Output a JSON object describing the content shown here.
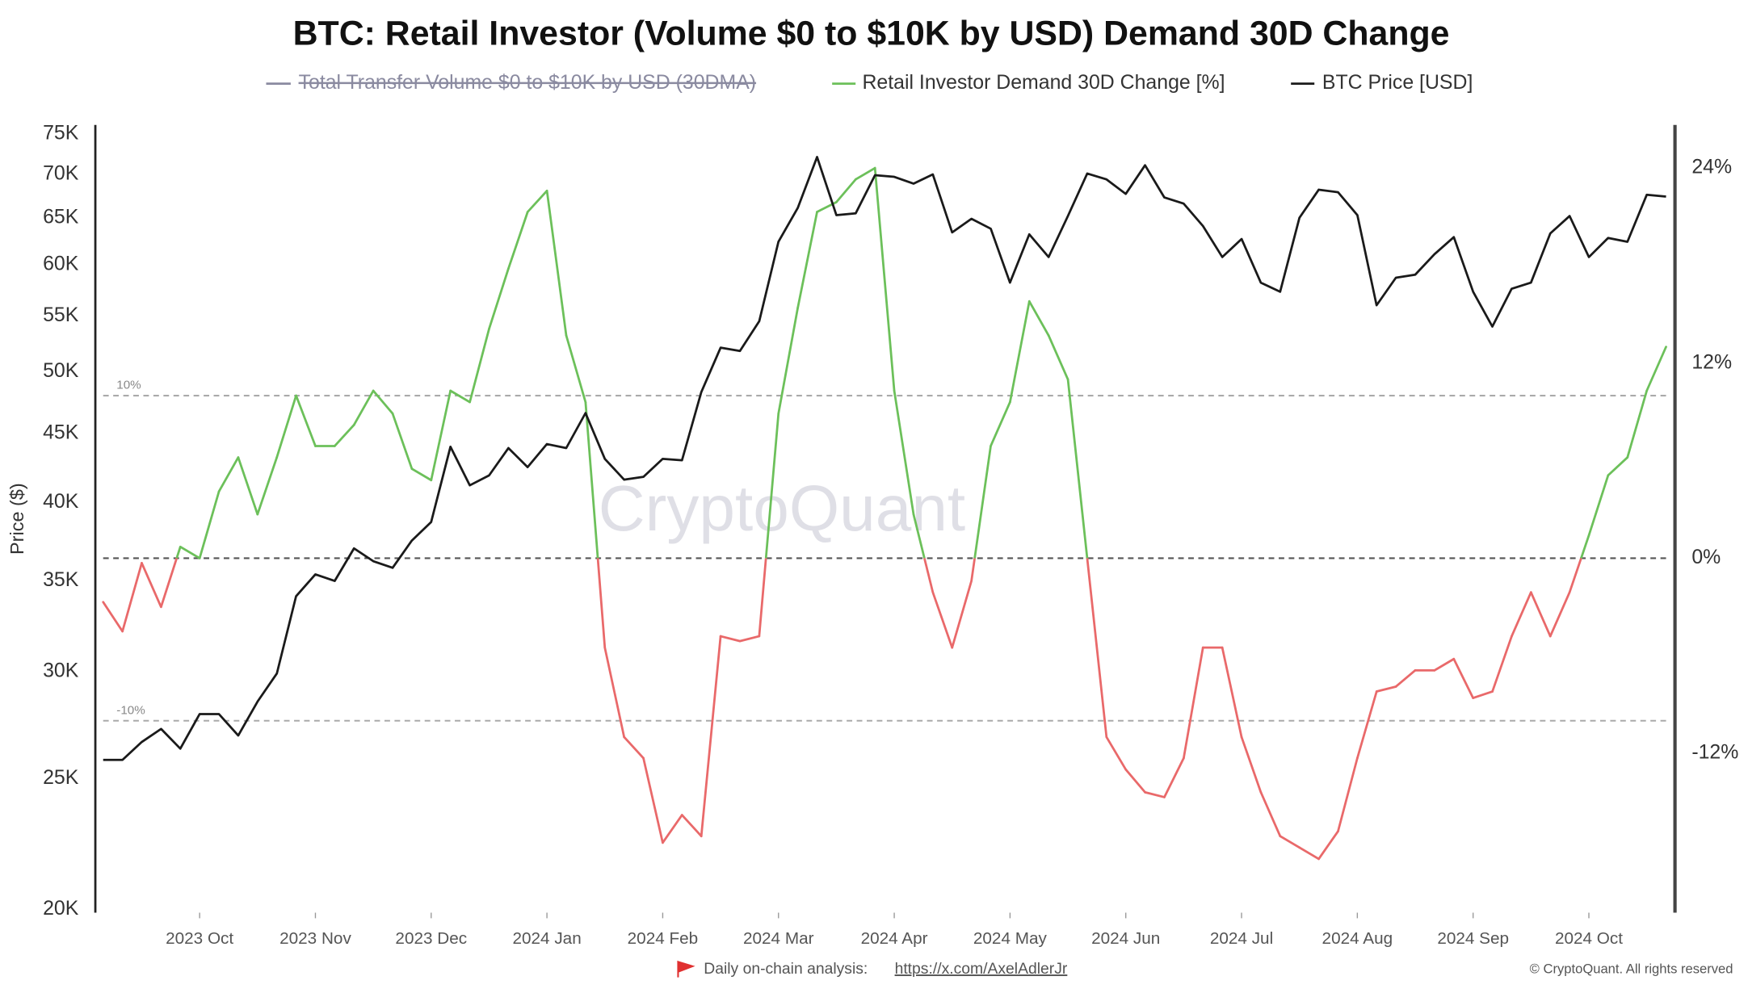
{
  "chart_data": {
    "type": "line",
    "title": "BTC: Retail Investor (Volume $0 to $10K by USD) Demand 30D Change",
    "legend_hidden": {
      "name": "Total Transfer Volume $0 to $10K by USD (30DMA)",
      "color": "#8a8aa0"
    },
    "categories": [
      null,
      null,
      null,
      null,
      null,
      "2023 Oct",
      null,
      null,
      null,
      null,
      null,
      "2023 Nov",
      null,
      null,
      null,
      null,
      null,
      "2023 Dec",
      null,
      null,
      null,
      null,
      null,
      "2024 Jan",
      null,
      null,
      null,
      null,
      null,
      "2024 Feb",
      null,
      null,
      null,
      null,
      null,
      "2024 Mar",
      null,
      null,
      null,
      null,
      null,
      "2024 Apr",
      null,
      null,
      null,
      null,
      null,
      "2024 May",
      null,
      null,
      null,
      null,
      null,
      "2024 Jun",
      null,
      null,
      null,
      null,
      null,
      "2024 Jul",
      null,
      null,
      null,
      null,
      null,
      "2024 Aug",
      null,
      null,
      null,
      null,
      null,
      "2024 Sep",
      null,
      null,
      null,
      null,
      null,
      "2024 Oct",
      null,
      null,
      null,
      null
    ],
    "series": [
      {
        "name": "Retail Investor Demand 30D Change [%]",
        "color": "#6cc05a",
        "negative_color": "#e9696a",
        "axis": "y2",
        "values": [
          -2.7,
          -4.5,
          -0.3,
          -3,
          0.7,
          0,
          4.1,
          6.2,
          2.7,
          6.2,
          10,
          6.9,
          6.9,
          8.2,
          10.3,
          8.9,
          5.5,
          4.8,
          10.3,
          9.6,
          14.1,
          17.8,
          21.3,
          22.6,
          13.7,
          9.6,
          -5.5,
          -11,
          -12.3,
          -17.5,
          -15.8,
          -17.1,
          -4.8,
          -5.1,
          -4.8,
          8.9,
          15.4,
          21.3,
          21.9,
          23.3,
          24,
          10.3,
          2.7,
          -2.1,
          -5.5,
          -1.4,
          6.9,
          9.6,
          15.8,
          13.7,
          11,
          0,
          -11,
          -13,
          -14.4,
          -14.7,
          -12.3,
          -5.5,
          -5.5,
          -11,
          -14.4,
          -17.1,
          -17.8,
          -18.5,
          -16.8,
          -12.3,
          -8.2,
          -7.9,
          -6.9,
          -6.9,
          -6.2,
          -8.6,
          -8.2,
          -4.8,
          -2.1,
          -4.8,
          -2.1,
          1.4,
          5.1,
          6.2,
          10.3,
          13
        ]
      },
      {
        "name": "BTC Price [USD]",
        "color": "#1a1a1a",
        "axis": "y",
        "values": [
          25800,
          25800,
          26600,
          27200,
          26300,
          27900,
          27900,
          26900,
          28500,
          29900,
          34100,
          35400,
          35000,
          37000,
          36200,
          35800,
          37500,
          38700,
          44000,
          41200,
          41900,
          43900,
          42500,
          44200,
          43900,
          46600,
          43100,
          41600,
          41800,
          43100,
          43000,
          48300,
          52100,
          51800,
          54500,
          62400,
          66100,
          72100,
          65300,
          65500,
          69900,
          69700,
          68900,
          70000,
          63400,
          64900,
          63800,
          58200,
          63200,
          60800,
          65200,
          70100,
          69400,
          67700,
          71100,
          67300,
          66600,
          64100,
          60800,
          62700,
          58200,
          57300,
          65000,
          68200,
          67900,
          65300,
          56000,
          58700,
          59000,
          61100,
          62900,
          57300,
          54000,
          57600,
          58200,
          63300,
          65200,
          60800,
          62800,
          62400,
          67600,
          67400
        ]
      }
    ],
    "ylabel": "Price ($)",
    "ylog": true,
    "ylim": [
      20000,
      75000
    ],
    "yticks": [
      {
        "value": 20000,
        "label": "20K"
      },
      {
        "value": 25000,
        "label": "25K"
      },
      {
        "value": 30000,
        "label": "30K"
      },
      {
        "value": 35000,
        "label": "35K"
      },
      {
        "value": 40000,
        "label": "40K"
      },
      {
        "value": 45000,
        "label": "45K"
      },
      {
        "value": 50000,
        "label": "50K"
      },
      {
        "value": 55000,
        "label": "55K"
      },
      {
        "value": 60000,
        "label": "60K"
      },
      {
        "value": 65000,
        "label": "65K"
      },
      {
        "value": 70000,
        "label": "70K"
      },
      {
        "value": 75000,
        "label": "75K"
      }
    ],
    "y2lim": [
      -21.6,
      26.1
    ],
    "y2ticks": [
      {
        "value": 24,
        "label": "24%"
      },
      {
        "value": 12,
        "label": "12%"
      },
      {
        "value": 0,
        "label": "0%"
      },
      {
        "value": -12,
        "label": "-12%"
      }
    ],
    "ref_lines": [
      {
        "value": 10,
        "label": "10%"
      },
      {
        "value": -10,
        "label": "-10%"
      }
    ],
    "zero_line": true,
    "watermark": "CryptoQuant",
    "footer": {
      "text": "Daily on-chain analysis:",
      "link": "https://x.com/AxelAdlerJr",
      "copyright": "© CryptoQuant. All rights reserved"
    }
  }
}
